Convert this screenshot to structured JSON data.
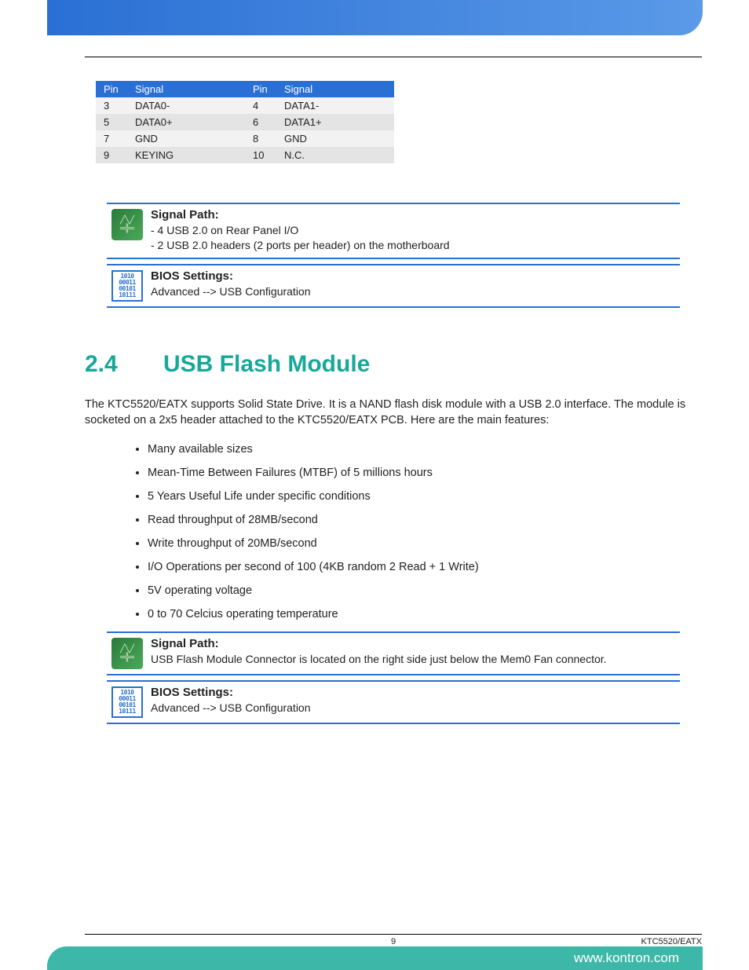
{
  "colors": {
    "brand_blue": "#2a6fd4",
    "brand_teal": "#17a89a",
    "footer_teal": "#3db8a8",
    "row_even": "#f2f2f2",
    "row_odd": "#e4e4e4"
  },
  "pin_table": {
    "headers": [
      "Pin",
      "Signal",
      "Pin",
      "Signal"
    ],
    "rows": [
      [
        "3",
        "DATA0-",
        "4",
        "DATA1-"
      ],
      [
        "5",
        "DATA0+",
        "6",
        "DATA1+"
      ],
      [
        "7",
        "GND",
        "8",
        "GND"
      ],
      [
        "9",
        "KEYING",
        "10",
        "N.C."
      ]
    ]
  },
  "info1": {
    "signal_path": {
      "title": "Signal Path:",
      "line1": "- 4 USB 2.0 on Rear Panel I/O",
      "line2": "- 2 USB 2.0 headers (2 ports per header) on the motherboard"
    },
    "bios": {
      "title": "BIOS Settings:",
      "line1": "Advanced --> USB Configuration"
    }
  },
  "section": {
    "number": "2.4",
    "title": "USB Flash Module",
    "intro": "The KTC5520/EATX supports Solid State Drive. It is a NAND flash disk module with a USB 2.0 interface. The module is socketed on a 2x5 header attached to the KTC5520/EATX PCB. Here are the main features:",
    "bullets": [
      "Many available sizes",
      "Mean-Time Between Failures (MTBF) of 5 millions hours",
      "5 Years Useful Life under specific conditions",
      "Read throughput of 28MB/second",
      "Write throughput of 20MB/second",
      "I/O Operations per second of 100 (4KB random 2 Read + 1 Write)",
      "5V operating voltage",
      "0 to 70 Celcius operating temperature"
    ]
  },
  "info2": {
    "signal_path": {
      "title": "Signal Path:",
      "line1": "USB Flash Module Connector is located on the right side just below the Mem0 Fan connector."
    },
    "bios": {
      "title": "BIOS Settings:",
      "line1": "Advanced --> USB Configuration"
    }
  },
  "footer": {
    "page": "9",
    "doc": "KTC5520/EATX",
    "url": "www.kontron.com"
  },
  "icon_bios_text": "1010\n00011\n00101\n10111"
}
